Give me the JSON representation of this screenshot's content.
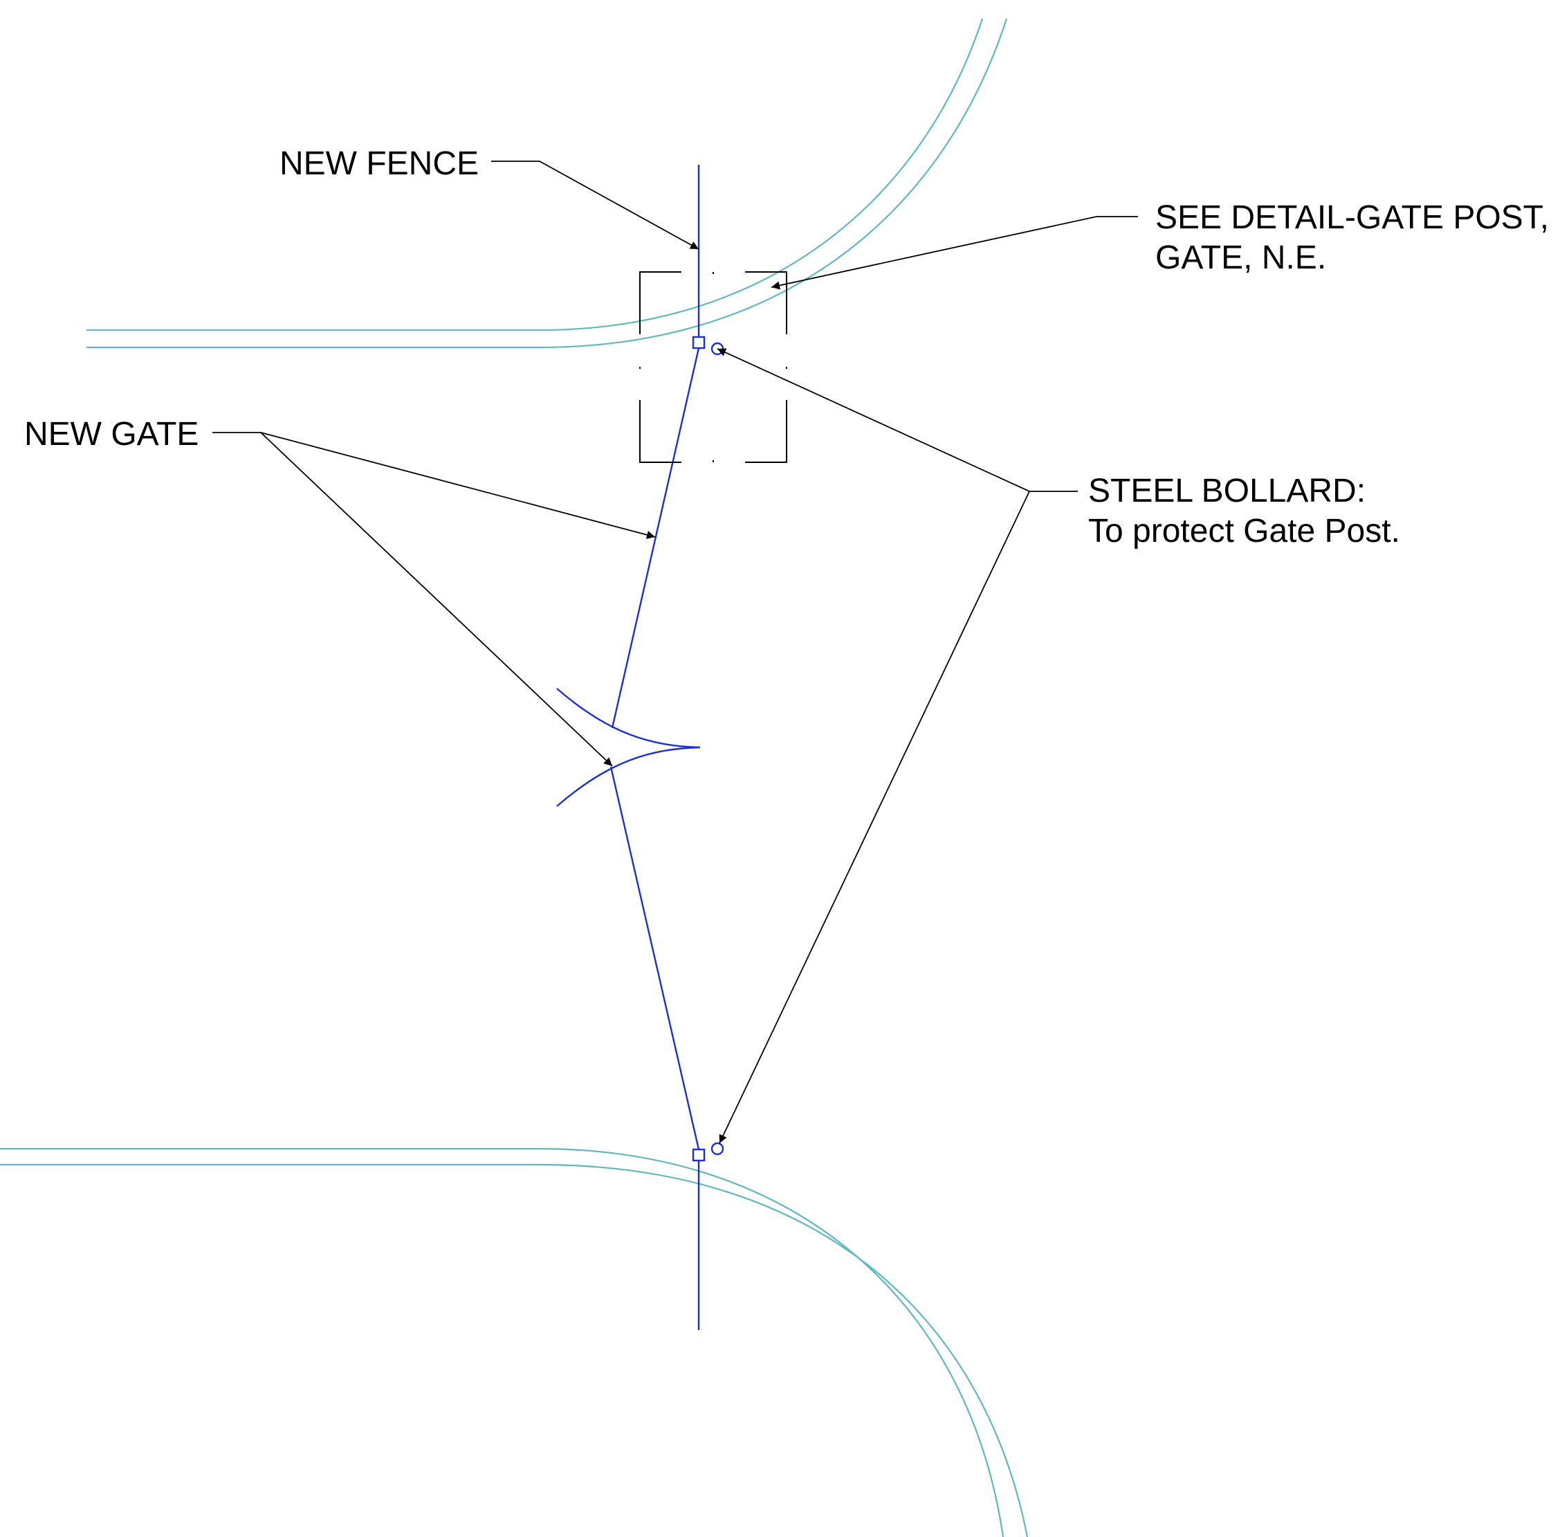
{
  "labels": {
    "new_fence": "NEW FENCE",
    "see_detail_line1": "SEE DETAIL-GATE POST,",
    "see_detail_line2": "GATE, N.E.",
    "new_gate": "NEW GATE",
    "steel_bollard_line1": "STEEL BOLLARD:",
    "steel_bollard_line2": "To protect Gate Post."
  },
  "colors": {
    "road_edge": "#5fb8c0",
    "fence": "#1a2fd6",
    "leader": "#000000"
  }
}
